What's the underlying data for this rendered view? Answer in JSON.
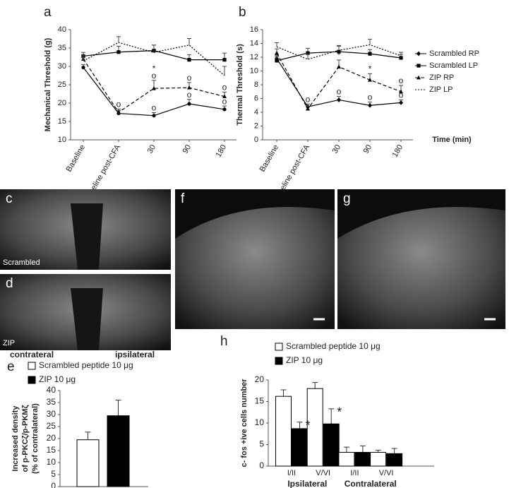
{
  "chart_data": [
    {
      "type": "line",
      "panel": "a",
      "ylabel": "Mechanical Threshold (g)",
      "categories": [
        "Baseline",
        "Baseline post-CFA",
        "30",
        "90",
        "180"
      ],
      "ylim": [
        10,
        40
      ],
      "yticks": [
        10,
        15,
        20,
        25,
        30,
        35,
        40
      ],
      "series": [
        {
          "name": "Scrambled RP",
          "color": "#000000",
          "line_style": "solid",
          "marker": "circle",
          "values": [
            29.7,
            17.2,
            16.6,
            19.8,
            18.3
          ],
          "errors": [
            0.8,
            0.8,
            0.8,
            1.2,
            0.9
          ]
        },
        {
          "name": "Scrambled LP",
          "color": "#000000",
          "line_style": "solid",
          "marker": "square",
          "values": [
            32.8,
            33.9,
            34.3,
            31.8,
            31.8
          ],
          "errors": [
            1.0,
            1.6,
            1.5,
            1.4,
            1.8
          ]
        },
        {
          "name": "ZIP RP",
          "color": "#000000",
          "line_style": "dashed",
          "marker": "triangle",
          "values": [
            32.0,
            17.5,
            24.0,
            24.2,
            21.8
          ],
          "errors": [
            1.0,
            0.9,
            2.2,
            1.4,
            1.2
          ]
        },
        {
          "name": "ZIP LP",
          "color": "#000000",
          "line_style": "dotted",
          "marker": "none",
          "values": [
            31.5,
            36.5,
            33.8,
            35.8,
            27.5
          ],
          "errors": [
            1.0,
            1.6,
            2.0,
            1.8,
            2.5
          ]
        }
      ],
      "annotations": [
        {
          "text": "o",
          "series": 2,
          "index": 1
        },
        {
          "text": "o",
          "series": 2,
          "index": 2
        },
        {
          "text": "*",
          "series": 2,
          "index": 2
        },
        {
          "text": "o",
          "series": 0,
          "index": 2
        },
        {
          "text": "o",
          "series": 2,
          "index": 3
        },
        {
          "text": "o",
          "series": 0,
          "index": 3
        },
        {
          "text": "o",
          "series": 2,
          "index": 4
        },
        {
          "text": "o",
          "series": 0,
          "index": 4
        }
      ]
    },
    {
      "type": "line",
      "panel": "b",
      "ylabel": "Thermal Threshold (s)",
      "xlabel": "Time (min)",
      "legend": "right",
      "categories": [
        "Baseline",
        "Baseline post-CFA",
        "30",
        "90",
        "180"
      ],
      "ylim": [
        0,
        16
      ],
      "yticks": [
        0,
        2,
        4,
        6,
        8,
        10,
        12,
        14,
        16
      ],
      "series": [
        {
          "name": "Scrambled RP",
          "color": "#000000",
          "line_style": "solid",
          "marker": "diamond",
          "values": [
            11.8,
            4.8,
            5.8,
            5.0,
            5.4
          ],
          "errors": [
            0.5,
            0.4,
            0.5,
            0.5,
            0.4
          ]
        },
        {
          "name": "Scrambled LP",
          "color": "#000000",
          "line_style": "solid",
          "marker": "square",
          "values": [
            11.5,
            12.6,
            12.8,
            12.5,
            11.9
          ],
          "errors": [
            0.6,
            0.7,
            0.8,
            0.6,
            0.5
          ]
        },
        {
          "name": "ZIP RP",
          "color": "#000000",
          "line_style": "dashed",
          "marker": "triangle",
          "values": [
            12.6,
            4.5,
            10.6,
            8.7,
            7.0
          ],
          "errors": [
            0.6,
            0.4,
            1.0,
            0.9,
            0.9
          ]
        },
        {
          "name": "ZIP  LP",
          "color": "#000000",
          "line_style": "dotted",
          "marker": "none",
          "values": [
            13.5,
            11.7,
            13.0,
            13.8,
            12.2
          ],
          "errors": [
            0.6,
            0.8,
            0.7,
            0.8,
            0.5
          ]
        }
      ],
      "annotations": [
        {
          "text": "o",
          "series": 0,
          "index": 1
        },
        {
          "text": "*",
          "series": 2,
          "index": 2
        },
        {
          "text": "o",
          "series": 0,
          "index": 2
        },
        {
          "text": "*",
          "series": 2,
          "index": 3
        },
        {
          "text": "o",
          "series": 0,
          "index": 3
        },
        {
          "text": "o",
          "series": 2,
          "index": 4
        },
        {
          "text": "o",
          "series": 0,
          "index": 4
        }
      ]
    },
    {
      "type": "bar",
      "panel": "e",
      "ylabel": [
        "Increased density",
        "of p-PKCζ/p-PKMζ",
        "(% of contralateral)"
      ],
      "categories": [
        null
      ],
      "ylim": [
        0,
        40
      ],
      "yticks": [
        0,
        5,
        10,
        15,
        20,
        25,
        30,
        35,
        40
      ],
      "series": [
        {
          "name": "Scrambled peptide 10 μg",
          "color": "#ffffff",
          "values": [
            19.5
          ],
          "errors": [
            3.2
          ]
        },
        {
          "name": "ZIP 10 μg",
          "color": "#000000",
          "values": [
            29.5
          ],
          "errors": [
            6.5
          ]
        }
      ]
    },
    {
      "type": "bar",
      "panel": "h",
      "ylabel": "c- fos +ive cells number",
      "categories": [
        "I/II",
        "V/VI",
        "I/II",
        "V/VI"
      ],
      "groups": [
        "Ipsilateral",
        "Contralateral"
      ],
      "ylim": [
        0,
        20
      ],
      "yticks": [
        0,
        5,
        10,
        15,
        20
      ],
      "series": [
        {
          "name": "Scrambled peptide 10 μg",
          "color": "#ffffff",
          "values": [
            16.2,
            18.0,
            3.2,
            3.2
          ],
          "errors": [
            1.5,
            1.4,
            1.2,
            0.5
          ]
        },
        {
          "name": "ZIP 10 μg",
          "color": "#000000",
          "values": [
            8.7,
            9.8,
            3.2,
            2.9
          ],
          "errors": [
            1.5,
            3.5,
            1.5,
            1.2
          ]
        }
      ],
      "annotations": [
        {
          "text": "*",
          "series": 1,
          "index": 0
        },
        {
          "text": "*",
          "series": 1,
          "index": 1
        }
      ]
    }
  ],
  "images": [
    {
      "panel": "c",
      "label": "Scrambled"
    },
    {
      "panel": "d",
      "label": "ZIP"
    },
    {
      "panel": "f"
    },
    {
      "panel": "g"
    }
  ],
  "orientation_labels": [
    "contrateral",
    "ipsilateral"
  ]
}
